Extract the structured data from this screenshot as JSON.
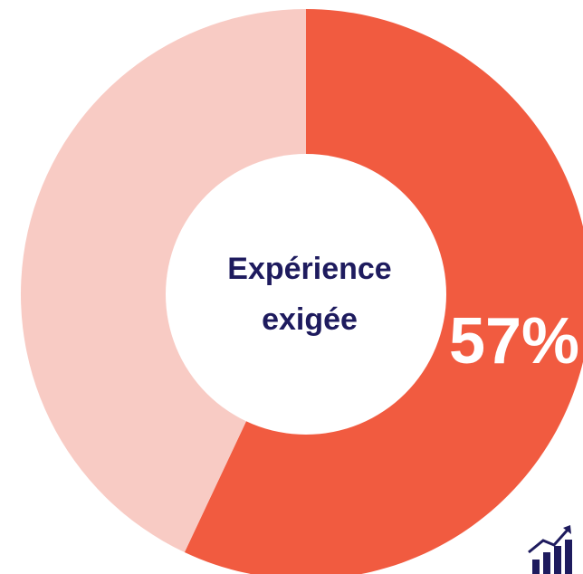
{
  "chart_data": {
    "type": "pie",
    "variant": "donut",
    "slices": [
      {
        "value": 57,
        "color": "#f15b40",
        "label": "57%"
      },
      {
        "value": 43,
        "color": "#f8cbc4"
      }
    ],
    "center_text": [
      "Expérience",
      "exigée"
    ],
    "colors": {
      "center_text": "#1e1b5e",
      "value_label": "#ffffff",
      "logo": "#1e1b5e"
    }
  },
  "icons": {
    "logo": "bar-chart-growth-icon"
  }
}
